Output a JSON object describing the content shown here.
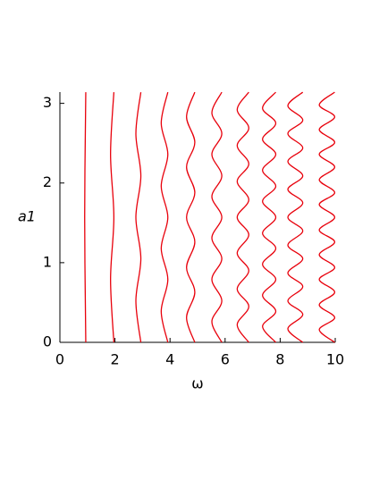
{
  "chart_data": {
    "type": "line",
    "x_label": "ω",
    "y_label": "a1",
    "color": "#e8000b",
    "xlim": [
      0,
      10
    ],
    "xticks": [
      0,
      2,
      4,
      6,
      8,
      10
    ],
    "ylim": [
      0,
      3.1416
    ],
    "yticks": [
      0,
      1,
      2,
      3
    ],
    "series": [
      {
        "x": [
          0.94,
          0.9,
          0.94
        ],
        "values": [
          0,
          1.57,
          3.14
        ]
      },
      {
        "x": [
          1.96,
          1.84,
          1.96,
          1.84,
          1.96
        ],
        "values": [
          0,
          0.79,
          1.57,
          2.36,
          3.14
        ]
      },
      {
        "x": [
          2.94,
          2.76,
          2.94,
          2.76,
          2.94,
          2.76,
          2.94
        ],
        "values": [
          0,
          0.52,
          1.05,
          1.57,
          2.09,
          2.62,
          3.14
        ]
      },
      {
        "x": [
          3.92,
          3.68,
          3.92,
          3.68,
          3.92,
          3.68,
          3.92,
          3.68,
          3.92
        ],
        "values": [
          0,
          0.39,
          0.79,
          1.18,
          1.57,
          1.96,
          2.36,
          2.75,
          3.14
        ]
      },
      {
        "x": [
          4.9,
          4.6,
          4.9,
          4.6,
          4.9,
          4.6,
          4.9,
          4.6,
          4.9,
          4.6,
          4.9
        ],
        "values": [
          0,
          0.31,
          0.63,
          0.94,
          1.26,
          1.57,
          1.88,
          2.2,
          2.51,
          2.83,
          3.14
        ]
      },
      {
        "x": [
          5.88,
          5.52,
          5.88,
          5.52,
          5.88,
          5.52,
          5.88,
          5.52,
          5.88,
          5.52,
          5.88,
          5.52,
          5.88
        ],
        "values": [
          0,
          0.26,
          0.52,
          0.79,
          1.05,
          1.31,
          1.57,
          1.83,
          2.09,
          2.36,
          2.62,
          2.88,
          3.14
        ]
      },
      {
        "x": [
          6.86,
          6.44,
          6.86,
          6.44,
          6.86,
          6.44,
          6.86,
          6.44,
          6.86,
          6.44,
          6.86,
          6.44,
          6.86,
          6.44,
          6.86
        ],
        "values": [
          0,
          0.22,
          0.45,
          0.67,
          0.9,
          1.12,
          1.35,
          1.57,
          1.79,
          2.02,
          2.24,
          2.47,
          2.69,
          2.92,
          3.14
        ]
      },
      {
        "x": [
          7.84,
          7.36,
          7.84,
          7.36,
          7.84,
          7.36,
          7.84,
          7.36,
          7.84,
          7.36,
          7.84,
          7.36,
          7.84,
          7.36,
          7.84,
          7.36,
          7.84
        ],
        "values": [
          0,
          0.2,
          0.39,
          0.59,
          0.79,
          0.98,
          1.18,
          1.37,
          1.57,
          1.77,
          1.96,
          2.16,
          2.36,
          2.55,
          2.75,
          2.94,
          3.14
        ]
      },
      {
        "x": [
          8.82,
          8.28,
          8.82,
          8.28,
          8.82,
          8.28,
          8.82,
          8.28,
          8.82,
          8.28,
          8.82,
          8.28,
          8.82,
          8.28,
          8.82,
          8.28,
          8.82,
          8.28,
          8.82
        ],
        "values": [
          0,
          0.17,
          0.35,
          0.52,
          0.7,
          0.87,
          1.05,
          1.22,
          1.4,
          1.57,
          1.75,
          1.92,
          2.09,
          2.27,
          2.44,
          2.62,
          2.79,
          2.97,
          3.14
        ]
      },
      {
        "x": [
          9.98,
          9.42,
          9.98,
          9.42,
          9.98,
          9.42,
          9.98,
          9.42,
          9.98,
          9.42,
          9.98,
          9.42,
          9.98,
          9.42,
          9.98,
          9.42,
          9.98,
          9.42,
          9.98,
          9.42,
          9.98
        ],
        "values": [
          0,
          0.16,
          0.31,
          0.47,
          0.63,
          0.79,
          0.94,
          1.1,
          1.26,
          1.41,
          1.57,
          1.73,
          1.88,
          2.04,
          2.2,
          2.36,
          2.51,
          2.67,
          2.83,
          2.98,
          3.14
        ]
      }
    ]
  }
}
